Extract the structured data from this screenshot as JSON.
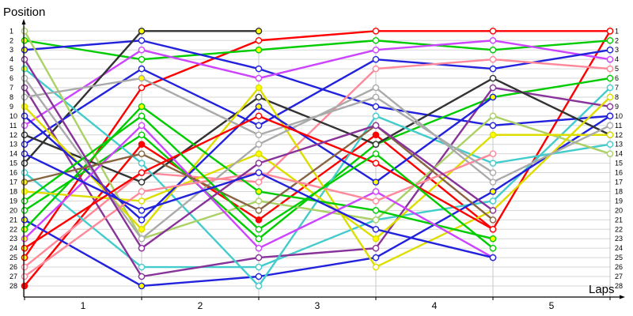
{
  "chart_data": {
    "type": "line",
    "ylabel": "Position",
    "xlabel": "Laps",
    "x": [
      0,
      1,
      2,
      3,
      4,
      5
    ],
    "x_tick_labels": [
      "1",
      "2",
      "3",
      "4",
      "5"
    ],
    "ylim": [
      1,
      28
    ],
    "y_inverted": true,
    "y_tick_labels": [
      "1",
      "2",
      "3",
      "4",
      "5",
      "6",
      "7",
      "8",
      "9",
      "10",
      "11",
      "12",
      "13",
      "14",
      "15",
      "16",
      "17",
      "18",
      "19",
      "20",
      "21",
      "22",
      "23",
      "24",
      "25",
      "26",
      "27",
      "28"
    ],
    "grid": true,
    "legend": "none",
    "series": [
      {
        "color": "#ff0000",
        "positions": [
          28,
          13,
          21,
          12,
          22,
          1
        ],
        "marker_fills": [
          "#ff0000",
          "#ff0000",
          "#ff0000",
          "#ff0000",
          "#ff0000",
          "#ffffff"
        ]
      },
      {
        "color": "#ff0000",
        "positions": [
          25,
          7,
          2,
          1,
          1,
          1
        ],
        "marker_fills": [
          "#ffff00",
          "#ffffff",
          "#ffffff",
          "#ffffff",
          "#ffffff",
          "#ffffff"
        ]
      },
      {
        "color": "#00cc00",
        "positions": [
          2,
          4,
          3,
          2,
          3,
          2
        ],
        "marker_fills": [
          "#ffff00",
          "#ffffff",
          "#ffff00",
          "#ffffff",
          "#ffffff",
          "#ffffff"
        ]
      },
      {
        "color": "#2222dd",
        "positions": [
          3,
          2,
          5,
          9,
          11,
          10
        ],
        "marker_fills": [
          "#ffff00",
          "#ffffff",
          "#ffffff",
          "#ffffff",
          "#ffffff",
          "#ffffff"
        ]
      },
      {
        "color": "#cc44ff",
        "positions": [
          11,
          3,
          6,
          3,
          2,
          4
        ],
        "marker_fills": [
          "#ffffff",
          "#ffffff",
          "#ffffff",
          "#ffffff",
          "#ffffff",
          "#ffffff"
        ]
      },
      {
        "color": "#333333",
        "positions": [
          15,
          1,
          1,
          null,
          null,
          null
        ],
        "marker_fills": [
          "#ffffff",
          "#ffff00",
          "#ffff00",
          "#ffffff",
          "#ffffff",
          "#ffffff"
        ]
      },
      {
        "color": "#2222dd",
        "positions": [
          13,
          5,
          11,
          4,
          5,
          3
        ],
        "marker_fills": [
          "#ffffff",
          "#ffffff",
          "#ffffff",
          "#ffffff",
          "#ffffff",
          "#ffffff"
        ]
      },
      {
        "color": "#ff8899",
        "positions": [
          26,
          16,
          17,
          5,
          4,
          5
        ],
        "marker_fills": [
          "#ffffff",
          "#ffffff",
          "#ffffff",
          "#ffffff",
          "#ffffff",
          "#ffffff"
        ]
      },
      {
        "color": "#00cc00",
        "positions": [
          20,
          12,
          23,
          13,
          8,
          6
        ],
        "marker_fills": [
          "#ffffff",
          "#ffffff",
          "#ffffff",
          "#ffffff",
          "#ffff00",
          "#ffffff"
        ]
      },
      {
        "color": "#44cccc",
        "positions": [
          16,
          26,
          26,
          21,
          19,
          7
        ],
        "marker_fills": [
          "#ffffff",
          "#ffffff",
          "#ffffff",
          "#ffffff",
          "#ffffff",
          "#ffffff"
        ]
      },
      {
        "color": "#883399",
        "positions": [
          7,
          27,
          25,
          24,
          7,
          9
        ],
        "marker_fills": [
          "#ffffff",
          "#ffffff",
          "#ffffff",
          "#ffffff",
          "#ffffff",
          "#ffffff"
        ]
      },
      {
        "color": "#2222dd",
        "positions": [
          21,
          28,
          27,
          25,
          18,
          10
        ],
        "marker_fills": [
          "#ffff00",
          "#ffff00",
          "#ffffff",
          "#ffffff",
          "#ffff00",
          "#ffffff"
        ]
      },
      {
        "color": "#333333",
        "positions": [
          12,
          17,
          8,
          13,
          6,
          12
        ],
        "marker_fills": [
          "#ffffff",
          "#ffffff",
          "#ffffff",
          "#ffffff",
          "#ffffff",
          "#ffffff"
        ]
      },
      {
        "color": "#44cccc",
        "positions": [
          5,
          15,
          28,
          10,
          15,
          13
        ],
        "marker_fills": [
          "#ffff00",
          "#ffffff",
          "#ffffff",
          "#ffffff",
          "#ffffff",
          "#ffffff"
        ]
      },
      {
        "color": "#aad066",
        "positions": [
          1,
          23,
          19,
          21,
          10,
          14
        ],
        "marker_fills": [
          "#ffffff",
          "#ffffff",
          "#ffffff",
          "#ffffff",
          "#ffffff",
          "#ffffff"
        ]
      },
      {
        "color": "#dddd00",
        "positions": [
          9,
          22,
          7,
          26,
          20,
          8
        ],
        "marker_fills": [
          "#ffff00",
          "#ffff00",
          "#ffff00",
          "#ffffff",
          "#ffffff",
          "#ffffff"
        ]
      },
      {
        "color": "#dddd00",
        "positions": [
          18,
          19,
          14,
          23,
          12,
          12
        ],
        "marker_fills": [
          "#ffff00",
          "#ffffff",
          "#ffff00",
          "#ffff00",
          "#ffff00",
          "#ffffff"
        ]
      },
      {
        "color": "#00cc00",
        "positions": [
          22,
          9,
          18,
          20,
          23,
          null
        ],
        "marker_fills": [
          "#ffff00",
          "#ffff00",
          "#ffff00",
          "#ffffff",
          "#ffff00",
          "#ffffff"
        ]
      },
      {
        "color": "#aaaaaa",
        "positions": [
          6,
          23,
          13,
          7,
          17,
          11
        ],
        "marker_fills": [
          "#ffffff",
          "#ffffff",
          "#ffffff",
          "#ffffff",
          "#ffffff",
          "#ffffff"
        ]
      },
      {
        "color": "#2222dd",
        "positions": [
          10,
          21,
          9,
          17,
          8,
          null
        ],
        "marker_fills": [
          "#ffffff",
          "#ffffff",
          "#ffff00",
          "#ffff00",
          "#ffff00",
          "#ffffff"
        ]
      },
      {
        "color": "#cc44ff",
        "positions": [
          23,
          11,
          24,
          18,
          25,
          null
        ],
        "marker_fills": [
          "#ffff00",
          "#ffffff",
          "#ffffff",
          "#ffffff",
          "#ffffff",
          "#ffffff"
        ]
      },
      {
        "color": "#886644",
        "positions": [
          17,
          14,
          20,
          11,
          21,
          null
        ],
        "marker_fills": [
          "#ffff00",
          "#ffffff",
          "#ffffff",
          "#ffffff",
          "#ffffff",
          "#ffffff"
        ]
      },
      {
        "color": "#ff8899",
        "positions": [
          27,
          18,
          16,
          19,
          14,
          null
        ],
        "marker_fills": [
          "#ffffff",
          "#ffffff",
          "#ffffff",
          "#ffffff",
          "#ffffff",
          "#ffffff"
        ]
      },
      {
        "color": "#aaaaaa",
        "positions": [
          8,
          6,
          12,
          8,
          16,
          null
        ],
        "marker_fills": [
          "#ffffff",
          "#ffff00",
          "#ffffff",
          "#ffffff",
          "#ffffff",
          "#ffffff"
        ]
      },
      {
        "color": "#ff0000",
        "positions": [
          24,
          16,
          10,
          15,
          22,
          null
        ],
        "marker_fills": [
          "#ffff00",
          "#ffffff",
          "#ffffff",
          "#ffffff",
          "#ffffff",
          "#ffffff"
        ]
      },
      {
        "color": "#00cc00",
        "positions": [
          19,
          10,
          22,
          14,
          24,
          null
        ],
        "marker_fills": [
          "#ffffff",
          "#ffffff",
          "#ffffff",
          "#ffffff",
          "#ffffff",
          "#ffffff"
        ]
      },
      {
        "color": "#883399",
        "positions": [
          4,
          24,
          15,
          11,
          20,
          null
        ],
        "marker_fills": [
          "#ffffff",
          "#ffffff",
          "#ffffff",
          "#ffffff",
          "#ffffff",
          "#ffffff"
        ]
      },
      {
        "color": "#2222dd",
        "positions": [
          14,
          20,
          16,
          22,
          25,
          null
        ],
        "marker_fills": [
          "#ffffff",
          "#ffffff",
          "#ffffff",
          "#ffffff",
          "#ffffff",
          "#ffffff"
        ]
      }
    ]
  }
}
